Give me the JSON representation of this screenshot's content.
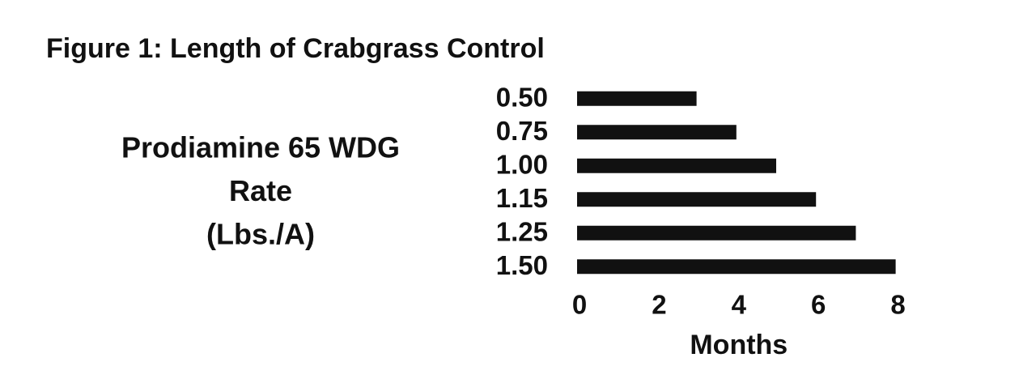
{
  "chart_data": {
    "type": "bar",
    "orientation": "horizontal",
    "title": "Figure 1: Length of Crabgrass Control",
    "ylabel": [
      "Prodiamine 65 WDG",
      "Rate",
      "(Lbs./A)"
    ],
    "xlabel": "Months",
    "categories": [
      "0.50",
      "0.75",
      "1.00",
      "1.15",
      "1.25",
      "1.50"
    ],
    "values": [
      3,
      4,
      5,
      6,
      7,
      8
    ],
    "color": "#111111",
    "xlim": [
      0,
      8
    ],
    "xticks": [
      0,
      2,
      4,
      6,
      8
    ],
    "grid": false
  }
}
